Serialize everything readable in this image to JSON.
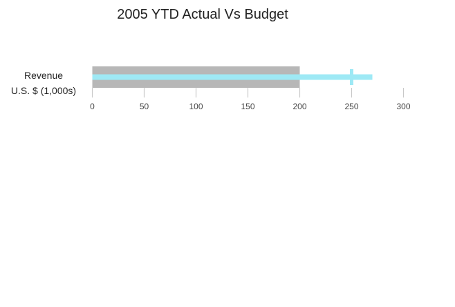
{
  "chart_data": {
    "type": "bullet",
    "title": "2005 YTD Actual Vs Budget",
    "rows": [
      {
        "label": "Revenue",
        "sublabel": "U.S. $ (1,000s)",
        "range": 200,
        "actual": 270,
        "target": 250
      }
    ],
    "xlim": [
      0,
      300
    ],
    "ticks": [
      0,
      50,
      100,
      150,
      200,
      250,
      300
    ],
    "colors": {
      "range": "#b7b7b7",
      "actual": "#9ee9f5",
      "target": "#9ee9f5",
      "axis": "#c8c8c8",
      "text": "#222222",
      "tick_text": "#444444"
    }
  }
}
